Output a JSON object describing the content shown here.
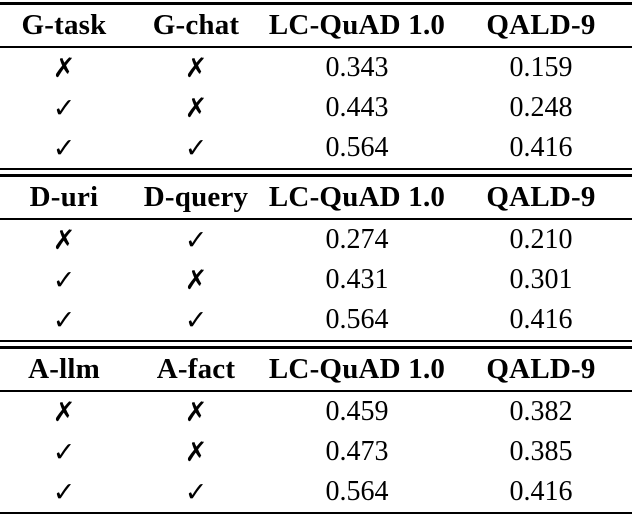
{
  "table": {
    "kind": "ablation-results-table",
    "colors": {
      "text": "#000000",
      "background": "#ffffff",
      "rule": "#000000"
    },
    "icons": {
      "check-icon": "✓",
      "cross-icon": "✗"
    },
    "sections": [
      {
        "headers": [
          "G-task",
          "G-chat",
          "LC-QuAD 1.0",
          "QALD-9"
        ],
        "rows": [
          {
            "marks": [
              "✗",
              "✗"
            ],
            "values": [
              "0.343",
              "0.159"
            ]
          },
          {
            "marks": [
              "✓",
              "✗"
            ],
            "values": [
              "0.443",
              "0.248"
            ]
          },
          {
            "marks": [
              "✓",
              "✓"
            ],
            "values": [
              "0.564",
              "0.416"
            ]
          }
        ]
      },
      {
        "headers": [
          "D-uri",
          "D-query",
          "LC-QuAD 1.0",
          "QALD-9"
        ],
        "rows": [
          {
            "marks": [
              "✗",
              "✓"
            ],
            "values": [
              "0.274",
              "0.210"
            ]
          },
          {
            "marks": [
              "✓",
              "✗"
            ],
            "values": [
              "0.431",
              "0.301"
            ]
          },
          {
            "marks": [
              "✓",
              "✓"
            ],
            "values": [
              "0.564",
              "0.416"
            ]
          }
        ]
      },
      {
        "headers": [
          "A-llm",
          "A-fact",
          "LC-QuAD 1.0",
          "QALD-9"
        ],
        "rows": [
          {
            "marks": [
              "✗",
              "✗"
            ],
            "values": [
              "0.459",
              "0.382"
            ]
          },
          {
            "marks": [
              "✓",
              "✗"
            ],
            "values": [
              "0.473",
              "0.385"
            ]
          },
          {
            "marks": [
              "✓",
              "✓"
            ],
            "values": [
              "0.564",
              "0.416"
            ]
          }
        ]
      }
    ]
  }
}
